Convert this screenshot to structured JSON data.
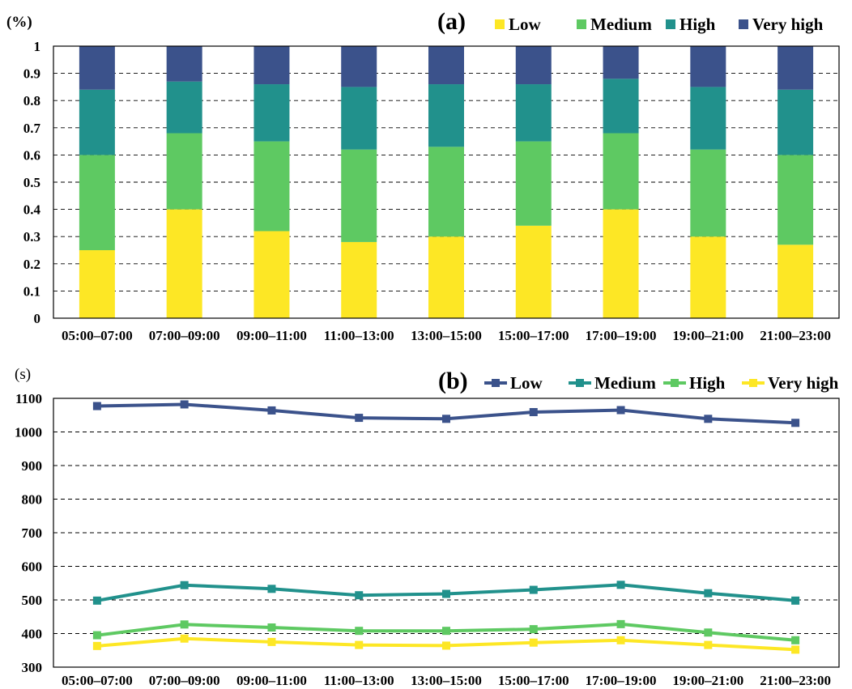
{
  "chart_data": [
    {
      "type": "bar",
      "stacked": true,
      "panel_label": "(a)",
      "ylabel": "(%)",
      "ylim": [
        0,
        1
      ],
      "yticks": [
        "0",
        "0.1",
        "0.2",
        "0.3",
        "0.4",
        "0.5",
        "0.6",
        "0.7",
        "0.8",
        "0.9",
        "1"
      ],
      "grid": true,
      "legend_position": "top-right",
      "categories": [
        "05:00–07:00",
        "07:00–09:00",
        "09:00–11:00",
        "11:00–13:00",
        "13:00–15:00",
        "15:00–17:00",
        "17:00–19:00",
        "19:00–21:00",
        "21:00–23:00"
      ],
      "series": [
        {
          "name": "Low",
          "color": "#fde725",
          "values": [
            0.25,
            0.4,
            0.32,
            0.28,
            0.3,
            0.34,
            0.4,
            0.3,
            0.27
          ]
        },
        {
          "name": "Medium",
          "color": "#5ec962",
          "values": [
            0.35,
            0.28,
            0.33,
            0.34,
            0.33,
            0.31,
            0.28,
            0.32,
            0.33
          ]
        },
        {
          "name": "High",
          "color": "#21918c",
          "values": [
            0.24,
            0.19,
            0.21,
            0.23,
            0.23,
            0.21,
            0.2,
            0.23,
            0.24
          ]
        },
        {
          "name": "Very high",
          "color": "#3b528b",
          "values": [
            0.16,
            0.13,
            0.14,
            0.15,
            0.14,
            0.14,
            0.12,
            0.15,
            0.16
          ]
        }
      ]
    },
    {
      "type": "line",
      "panel_label": "(b)",
      "ylabel": "(s)",
      "ylim": [
        300,
        1100
      ],
      "yticks": [
        "300",
        "400",
        "500",
        "600",
        "700",
        "800",
        "900",
        "1000",
        "1100"
      ],
      "grid": true,
      "legend_position": "top-right",
      "categories": [
        "05:00–07:00",
        "07:00–09:00",
        "09:00–11:00",
        "11:00–13:00",
        "13:00–15:00",
        "15:00–17:00",
        "17:00–19:00",
        "19:00–21:00",
        "21:00–23:00"
      ],
      "series": [
        {
          "name": "Low",
          "color": "#3b528b",
          "values": [
            1077,
            1082,
            1064,
            1042,
            1039,
            1059,
            1065,
            1039,
            1027
          ]
        },
        {
          "name": "Medium",
          "color": "#21918c",
          "values": [
            498,
            544,
            533,
            514,
            518,
            530,
            545,
            520,
            498
          ]
        },
        {
          "name": "High",
          "color": "#5ec962",
          "values": [
            395,
            427,
            418,
            408,
            408,
            413,
            428,
            403,
            380
          ]
        },
        {
          "name": "Very high",
          "color": "#fde725",
          "values": [
            363,
            385,
            375,
            366,
            364,
            373,
            380,
            366,
            352
          ]
        }
      ]
    }
  ]
}
